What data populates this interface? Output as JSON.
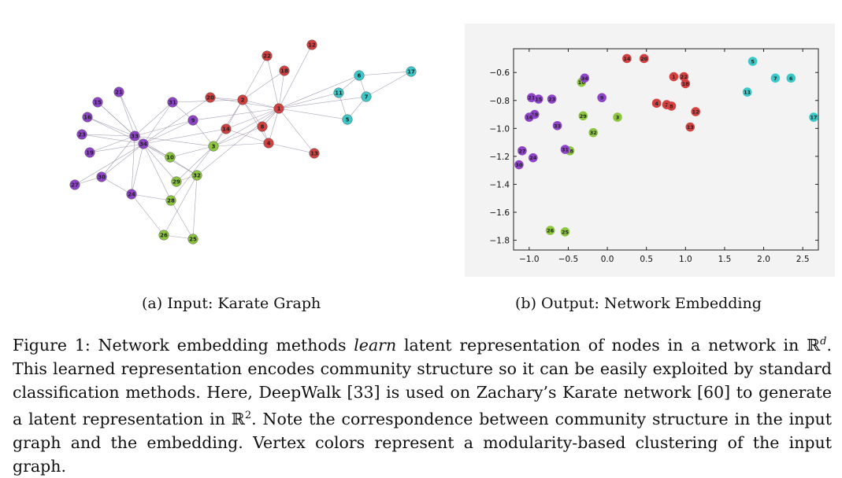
{
  "colors": {
    "purple": "#8e44c9",
    "red": "#d24040",
    "green": "#8cc63f",
    "cyan": "#3cc8c8",
    "edge": "#8a7f9a"
  },
  "graph": {
    "nodes": [
      {
        "id": "1",
        "group": "red"
      },
      {
        "id": "2",
        "group": "red"
      },
      {
        "id": "3",
        "group": "green"
      },
      {
        "id": "4",
        "group": "red"
      },
      {
        "id": "5",
        "group": "cyan"
      },
      {
        "id": "6",
        "group": "cyan"
      },
      {
        "id": "7",
        "group": "cyan"
      },
      {
        "id": "8",
        "group": "red"
      },
      {
        "id": "9",
        "group": "purple"
      },
      {
        "id": "10",
        "group": "green"
      },
      {
        "id": "11",
        "group": "cyan"
      },
      {
        "id": "12",
        "group": "red"
      },
      {
        "id": "13",
        "group": "red"
      },
      {
        "id": "14",
        "group": "red"
      },
      {
        "id": "15",
        "group": "purple"
      },
      {
        "id": "16",
        "group": "purple"
      },
      {
        "id": "17",
        "group": "cyan"
      },
      {
        "id": "18",
        "group": "red"
      },
      {
        "id": "19",
        "group": "purple"
      },
      {
        "id": "20",
        "group": "red"
      },
      {
        "id": "21",
        "group": "purple"
      },
      {
        "id": "22",
        "group": "red"
      },
      {
        "id": "23",
        "group": "purple"
      },
      {
        "id": "24",
        "group": "purple"
      },
      {
        "id": "25",
        "group": "green"
      },
      {
        "id": "26",
        "group": "green"
      },
      {
        "id": "27",
        "group": "purple"
      },
      {
        "id": "28",
        "group": "green"
      },
      {
        "id": "29",
        "group": "green"
      },
      {
        "id": "30",
        "group": "purple"
      },
      {
        "id": "31",
        "group": "purple"
      },
      {
        "id": "32",
        "group": "green"
      },
      {
        "id": "33",
        "group": "purple"
      },
      {
        "id": "34",
        "group": "purple"
      }
    ],
    "edges": [
      [
        "1",
        "2"
      ],
      [
        "1",
        "3"
      ],
      [
        "1",
        "4"
      ],
      [
        "1",
        "5"
      ],
      [
        "1",
        "6"
      ],
      [
        "1",
        "7"
      ],
      [
        "1",
        "8"
      ],
      [
        "1",
        "9"
      ],
      [
        "1",
        "11"
      ],
      [
        "1",
        "12"
      ],
      [
        "1",
        "13"
      ],
      [
        "1",
        "14"
      ],
      [
        "1",
        "18"
      ],
      [
        "1",
        "20"
      ],
      [
        "1",
        "22"
      ],
      [
        "1",
        "32"
      ],
      [
        "2",
        "3"
      ],
      [
        "2",
        "4"
      ],
      [
        "2",
        "8"
      ],
      [
        "2",
        "14"
      ],
      [
        "2",
        "18"
      ],
      [
        "2",
        "20"
      ],
      [
        "2",
        "22"
      ],
      [
        "2",
        "31"
      ],
      [
        "3",
        "4"
      ],
      [
        "3",
        "8"
      ],
      [
        "3",
        "9"
      ],
      [
        "3",
        "10"
      ],
      [
        "3",
        "14"
      ],
      [
        "3",
        "28"
      ],
      [
        "3",
        "29"
      ],
      [
        "3",
        "33"
      ],
      [
        "4",
        "8"
      ],
      [
        "4",
        "13"
      ],
      [
        "4",
        "14"
      ],
      [
        "5",
        "7"
      ],
      [
        "5",
        "11"
      ],
      [
        "6",
        "7"
      ],
      [
        "6",
        "11"
      ],
      [
        "6",
        "17"
      ],
      [
        "7",
        "17"
      ],
      [
        "9",
        "31"
      ],
      [
        "9",
        "33"
      ],
      [
        "9",
        "34"
      ],
      [
        "10",
        "34"
      ],
      [
        "14",
        "34"
      ],
      [
        "15",
        "33"
      ],
      [
        "15",
        "34"
      ],
      [
        "16",
        "33"
      ],
      [
        "16",
        "34"
      ],
      [
        "19",
        "33"
      ],
      [
        "19",
        "34"
      ],
      [
        "20",
        "34"
      ],
      [
        "21",
        "33"
      ],
      [
        "21",
        "34"
      ],
      [
        "23",
        "33"
      ],
      [
        "23",
        "34"
      ],
      [
        "24",
        "26"
      ],
      [
        "24",
        "28"
      ],
      [
        "24",
        "30"
      ],
      [
        "24",
        "33"
      ],
      [
        "24",
        "34"
      ],
      [
        "25",
        "26"
      ],
      [
        "25",
        "28"
      ],
      [
        "25",
        "32"
      ],
      [
        "26",
        "32"
      ],
      [
        "27",
        "30"
      ],
      [
        "27",
        "34"
      ],
      [
        "28",
        "34"
      ],
      [
        "29",
        "32"
      ],
      [
        "29",
        "34"
      ],
      [
        "30",
        "33"
      ],
      [
        "30",
        "34"
      ],
      [
        "31",
        "33"
      ],
      [
        "31",
        "34"
      ],
      [
        "32",
        "33"
      ],
      [
        "32",
        "34"
      ],
      [
        "33",
        "34"
      ]
    ]
  },
  "chart_data": {
    "type": "scatter",
    "xlim": [
      -1.2,
      2.7
    ],
    "ylim": [
      -1.87,
      -0.43
    ],
    "x_ticks": [
      -1.0,
      -0.5,
      0.0,
      0.5,
      1.0,
      1.5,
      2.0,
      2.5
    ],
    "x_tick_labels": [
      "−1.0",
      "−0.5",
      "0.0",
      "0.5",
      "1.0",
      "1.5",
      "2.0",
      "2.5"
    ],
    "y_ticks": [
      -0.6,
      -0.8,
      -1.0,
      -1.2,
      -1.4,
      -1.6,
      -1.8
    ],
    "y_tick_labels": [
      "−0.6",
      "−0.8",
      "−1.0",
      "−1.2",
      "−1.4",
      "−1.6",
      "−1.8"
    ],
    "grid": false,
    "points": [
      {
        "label": "14",
        "group": "red",
        "x": 0.25,
        "y": -0.5
      },
      {
        "label": "20",
        "group": "red",
        "x": 0.47,
        "y": -0.5
      },
      {
        "label": "1",
        "group": "red",
        "x": 0.85,
        "y": -0.63
      },
      {
        "label": "22",
        "group": "red",
        "x": 0.98,
        "y": -0.63
      },
      {
        "label": "18",
        "group": "red",
        "x": 1.0,
        "y": -0.68
      },
      {
        "label": "4",
        "group": "red",
        "x": 0.63,
        "y": -0.82
      },
      {
        "label": "2",
        "group": "red",
        "x": 0.76,
        "y": -0.83
      },
      {
        "label": "8",
        "group": "red",
        "x": 0.82,
        "y": -0.84
      },
      {
        "label": "12",
        "group": "red",
        "x": 1.13,
        "y": -0.88
      },
      {
        "label": "13",
        "group": "red",
        "x": 1.06,
        "y": -0.99
      },
      {
        "label": "5",
        "group": "cyan",
        "x": 1.86,
        "y": -0.52
      },
      {
        "label": "7",
        "group": "cyan",
        "x": 2.15,
        "y": -0.64
      },
      {
        "label": "6",
        "group": "cyan",
        "x": 2.35,
        "y": -0.64
      },
      {
        "label": "11",
        "group": "cyan",
        "x": 1.79,
        "y": -0.74
      },
      {
        "label": "17",
        "group": "cyan",
        "x": 2.64,
        "y": -0.92
      },
      {
        "label": "10",
        "group": "green",
        "x": -0.33,
        "y": -0.67
      },
      {
        "label": "29",
        "group": "green",
        "x": -0.31,
        "y": -0.91
      },
      {
        "label": "3",
        "group": "green",
        "x": 0.13,
        "y": -0.92
      },
      {
        "label": "32",
        "group": "green",
        "x": -0.18,
        "y": -1.03
      },
      {
        "label": "28",
        "group": "green",
        "x": -0.48,
        "y": -1.16
      },
      {
        "label": "26",
        "group": "green",
        "x": -0.73,
        "y": -1.73
      },
      {
        "label": "25",
        "group": "green",
        "x": -0.54,
        "y": -1.74
      },
      {
        "label": "34",
        "group": "purple",
        "x": -0.29,
        "y": -0.64
      },
      {
        "label": "9",
        "group": "purple",
        "x": -0.07,
        "y": -0.78
      },
      {
        "label": "21",
        "group": "purple",
        "x": -0.97,
        "y": -0.78
      },
      {
        "label": "15",
        "group": "purple",
        "x": -0.88,
        "y": -0.79
      },
      {
        "label": "23",
        "group": "purple",
        "x": -0.71,
        "y": -0.79
      },
      {
        "label": "19",
        "group": "purple",
        "x": -0.93,
        "y": -0.9
      },
      {
        "label": "16",
        "group": "purple",
        "x": -1.0,
        "y": -0.92
      },
      {
        "label": "33",
        "group": "purple",
        "x": -0.64,
        "y": -0.98
      },
      {
        "label": "31",
        "group": "purple",
        "x": -0.54,
        "y": -1.15
      },
      {
        "label": "27",
        "group": "purple",
        "x": -1.09,
        "y": -1.16
      },
      {
        "label": "24",
        "group": "purple",
        "x": -0.95,
        "y": -1.21
      },
      {
        "label": "30",
        "group": "purple",
        "x": -1.13,
        "y": -1.26
      }
    ]
  },
  "subcaption_a": "(a) Input: Karate Graph",
  "subcaption_b": "(b) Output: Network Embedding",
  "caption": {
    "prefix": "Figure 1: Network embedding methods ",
    "emph": "learn",
    "middle": " latent representation of nodes in a network in ",
    "rd": "ℝ",
    "rd_sup": "d",
    "after_rd": ". This learned representation encodes community structure so it can be easily exploited by standard classification methods. Here, DeepWalk [33] is used on Zachary’s Karate network [60] to generate a latent representation in ",
    "r2": "ℝ",
    "r2_sup": "2",
    "suffix": ". Note the correspondence between community structure in the input graph and the embedding. Vertex colors represent a modularity-based clustering of the input graph."
  }
}
